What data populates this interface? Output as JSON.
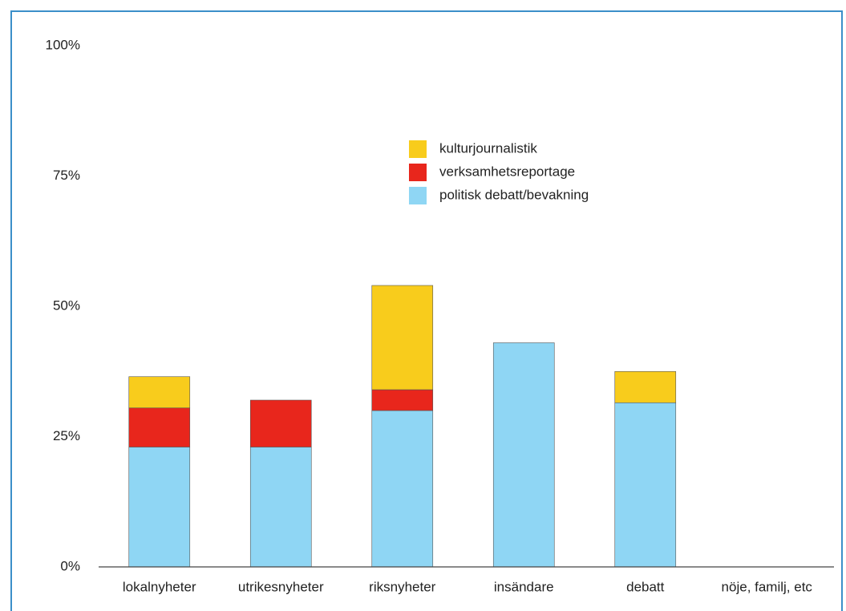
{
  "chart_data": {
    "type": "stacked_bar",
    "categories": [
      "lokalnyheter",
      "utrikesnyheter",
      "riksnyheter",
      "insändare",
      "debatt",
      "nöje, familj, etc"
    ],
    "series": [
      {
        "name": "politisk debatt/bevakning",
        "color": "#8fd6f4",
        "values": [
          23,
          23,
          30,
          43,
          31.5,
          0
        ]
      },
      {
        "name": "verksamhetsreportage",
        "color": "#e8261c",
        "values": [
          7.5,
          9,
          4,
          0,
          0,
          0
        ]
      },
      {
        "name": "kulturjournalistik",
        "color": "#f8cc1c",
        "values": [
          6,
          0,
          20,
          0,
          6,
          0
        ]
      }
    ],
    "ylim": [
      0,
      100
    ],
    "yticks": [
      {
        "value": 0,
        "label": "0%"
      },
      {
        "value": 25,
        "label": "25%"
      },
      {
        "value": 50,
        "label": "50%"
      },
      {
        "value": 75,
        "label": "75%"
      },
      {
        "value": 100,
        "label": "100%"
      }
    ],
    "grid": false
  }
}
